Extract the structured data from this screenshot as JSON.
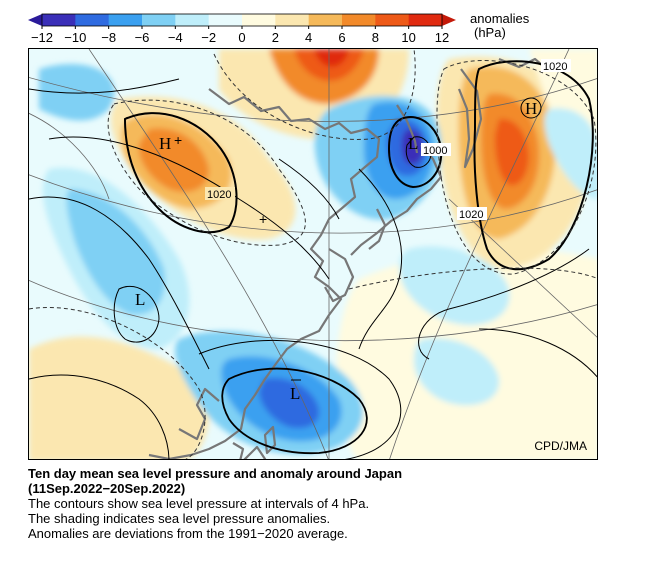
{
  "legend": {
    "title_line1": "anomalies",
    "title_line2": "(hPa)",
    "ticks": [
      "−12",
      "−10",
      "−8",
      "−6",
      "−4",
      "−2",
      "0",
      "2",
      "4",
      "6",
      "8",
      "10",
      "12"
    ],
    "colors": [
      "#3a2fb8",
      "#2f6be0",
      "#3aa0f0",
      "#7fd0f4",
      "#bfeefa",
      "#e9fbfd",
      "#fffbe0",
      "#fbe7b0",
      "#f5b95a",
      "#f28a2a",
      "#ee5a18",
      "#e02a10"
    ]
  },
  "map": {
    "credit": "CPD/JMA",
    "pressure_labels": [
      "1020",
      "1020",
      "1000",
      "1020"
    ],
    "centers": [
      "H",
      "H",
      "L",
      "L",
      "L"
    ]
  },
  "caption": {
    "title": "Ten day mean sea level pressure and anomaly around Japan",
    "period": "(11Sep.2022−20Sep.2022)",
    "line1": "The contours show sea level pressure at intervals of 4 hPa.",
    "line2": "The shading indicates sea level pressure anomalies.",
    "line3": "Anomalies are deviations from the 1991−2020 average."
  }
}
